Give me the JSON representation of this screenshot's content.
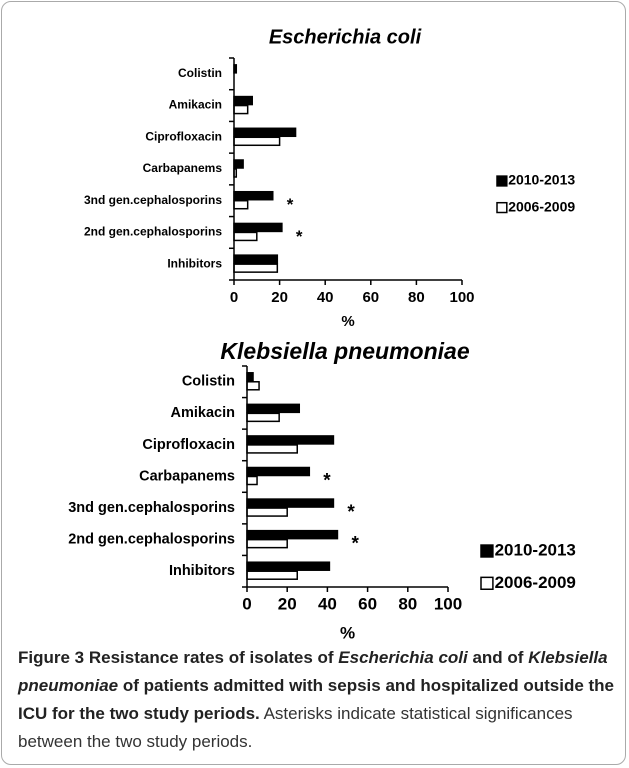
{
  "chart_data": [
    {
      "type": "barh",
      "title": "Escherichia coli",
      "x_label": "%",
      "categories": [
        "Colistin",
        "Amikacin",
        "Ciprofloxacin",
        "Carbapanems",
        "3nd gen.cephalosporins",
        "2nd gen.cephalosporins",
        "Inhibitors"
      ],
      "series": [
        {
          "name": "2010-2013",
          "color": "#000000",
          "values": [
            1,
            8,
            27,
            4,
            17,
            21,
            19
          ]
        },
        {
          "name": "2006-2009",
          "color": "#ffffff",
          "values": [
            0,
            6,
            20,
            1,
            6,
            10,
            19
          ]
        }
      ],
      "xlim": [
        0,
        100
      ],
      "xticks": [
        0,
        20,
        40,
        60,
        80,
        100
      ],
      "legend": "right",
      "annotations": [
        {
          "text": "*",
          "category": "3nd gen.cephalosporins"
        },
        {
          "text": "*",
          "category": "2nd gen.cephalosporins"
        }
      ]
    },
    {
      "type": "barh",
      "title": "Klebsiella pneumoniae",
      "x_label": "%",
      "categories": [
        "Colistin",
        "Amikacin",
        "Ciprofloxacin",
        "Carbapanems",
        "3nd gen.cephalosporins",
        "2nd gen.cephalosporins",
        "Inhibitors"
      ],
      "series": [
        {
          "name": "2010-2013",
          "color": "#000000",
          "values": [
            3,
            26,
            43,
            31,
            43,
            45,
            41
          ]
        },
        {
          "name": "2006-2009",
          "color": "#ffffff",
          "values": [
            6,
            16,
            25,
            5,
            20,
            20,
            25
          ]
        }
      ],
      "xlim": [
        0,
        100
      ],
      "xticks": [
        0,
        20,
        40,
        60,
        80,
        100
      ],
      "legend": "right",
      "annotations": [
        {
          "text": "*",
          "category": "Carbapanems"
        },
        {
          "text": "*",
          "category": "3nd gen.cephalosporins"
        },
        {
          "text": "*",
          "category": "2nd gen.cephalosporins"
        }
      ]
    }
  ],
  "caption": [
    "Figure 3",
    " Resistance rates of isolates of ",
    "Escherichia coli",
    " and of ",
    "Klebsiella pneumoniae",
    " of patients admitted with sepsis and hospitalized outside the ICU for the two study periods.",
    " Asterisks indicate statistical significances between the two study periods."
  ]
}
